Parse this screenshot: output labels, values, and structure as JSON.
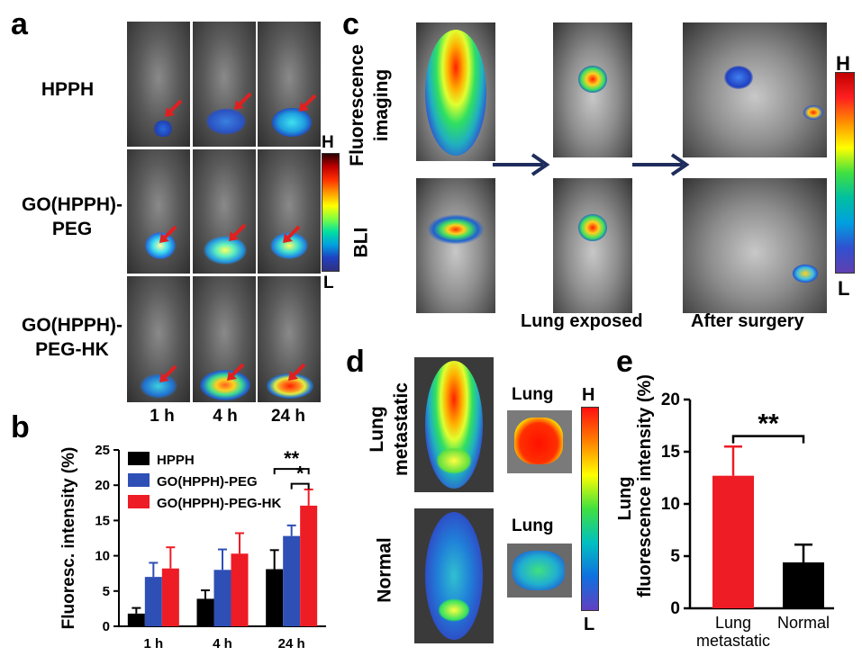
{
  "panel_labels": {
    "a": "a",
    "b": "b",
    "c": "c",
    "d": "d",
    "e": "e"
  },
  "panel_a": {
    "rows": [
      "HPPH",
      "GO(HPPH)-\nPEG",
      "GO(HPPH)-\nPEG-HK"
    ],
    "row_lines": [
      [
        "HPPH"
      ],
      [
        "GO(HPPH)-",
        "PEG"
      ],
      [
        "GO(HPPH)-",
        "PEG-HK"
      ]
    ],
    "timepoints": [
      "1 h",
      "4 h",
      "24 h"
    ],
    "scale_high": "H",
    "scale_low": "L"
  },
  "panel_c": {
    "rows": [
      "Fluorescence imaging",
      "BLI"
    ],
    "row_fluor_lines": [
      "Fluorescence",
      "imaging"
    ],
    "row_bli": "BLI",
    "captions": [
      "Lung exposed",
      "After surgery"
    ],
    "scale_high": "H",
    "scale_low": "L"
  },
  "panel_d": {
    "rows": [
      "Lung metastatic",
      "Normal"
    ],
    "row1_lines": [
      "Lung",
      "metastatic"
    ],
    "row2": "Normal",
    "organ_label_1": "Lung",
    "organ_label_2": "Lung",
    "scale_high": "H",
    "scale_low": "L"
  },
  "chart_data": [
    {
      "type": "bar",
      "panel": "b",
      "categories": [
        "1 h",
        "4 h",
        "24 h"
      ],
      "ylabel": "Fluoresc. intensity (%)",
      "ylim": [
        0,
        25
      ],
      "yticks": [
        0,
        5,
        10,
        15,
        20,
        25
      ],
      "legend_position": "top-left",
      "series": [
        {
          "name": "HPPH",
          "color": "#000000",
          "values": [
            1.8,
            3.9,
            8.1
          ],
          "errors": [
            0.8,
            1.2,
            2.7
          ]
        },
        {
          "name": "GO(HPPH)-PEG",
          "color": "#2e4fb5",
          "values": [
            7.0,
            8.0,
            12.8
          ],
          "errors": [
            2.0,
            2.9,
            1.5
          ]
        },
        {
          "name": "GO(HPPH)-PEG-HK",
          "color": "#ee1c25",
          "values": [
            8.2,
            10.3,
            17.1
          ],
          "errors": [
            3.0,
            2.9,
            2.3
          ]
        }
      ],
      "annotations": [
        {
          "text": "**",
          "between": [
            "HPPH",
            "GO(HPPH)-PEG-HK"
          ],
          "category": "24 h"
        },
        {
          "text": "*",
          "between": [
            "GO(HPPH)-PEG",
            "GO(HPPH)-PEG-HK"
          ],
          "category": "24 h"
        }
      ]
    },
    {
      "type": "bar",
      "panel": "e",
      "categories": [
        "Lung\nmetastatic",
        "Normal"
      ],
      "category_lines": [
        [
          "Lung",
          "metastatic"
        ],
        [
          "Normal"
        ]
      ],
      "ylabel_lines": [
        "Lung",
        "fluorescence intensity (%)"
      ],
      "ylim": [
        0,
        20
      ],
      "yticks": [
        0,
        5,
        10,
        15,
        20
      ],
      "values": [
        12.7,
        4.4
      ],
      "errors": [
        2.8,
        1.7
      ],
      "colors": [
        "#ee1c25",
        "#000000"
      ],
      "annotations": [
        {
          "text": "**",
          "between": [
            "Lung metastatic",
            "Normal"
          ]
        }
      ]
    }
  ]
}
